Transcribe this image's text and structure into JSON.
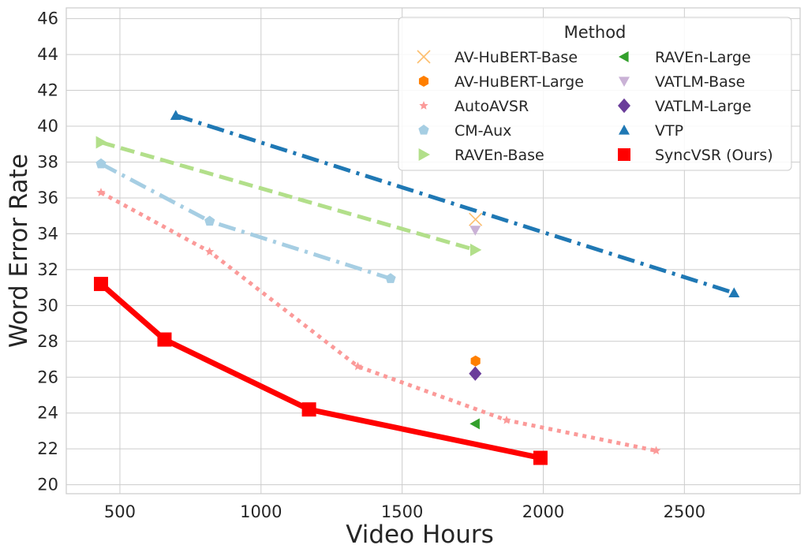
{
  "chart_data": {
    "type": "line",
    "title": "",
    "xlabel": "Video Hours",
    "ylabel": "Word Error Rate",
    "xlim": [
      310,
      2910
    ],
    "ylim": [
      19.5,
      46.6
    ],
    "xticks": [
      500,
      1000,
      1500,
      2000,
      2500
    ],
    "yticks": [
      20,
      22,
      24,
      26,
      28,
      30,
      32,
      34,
      36,
      38,
      40,
      42,
      44,
      46
    ],
    "grid": true,
    "legend": {
      "title": "Method",
      "position": "top-right",
      "columns": 2
    },
    "series": [
      {
        "name": "AV-HuBERT-Base",
        "color": "#fdbf6f",
        "marker": "x",
        "line": "none",
        "points": [
          [
            1760,
            34.8
          ]
        ]
      },
      {
        "name": "AV-HuBERT-Large",
        "color": "#ff7f00",
        "marker": "hexagon",
        "line": "none",
        "points": [
          [
            1760,
            26.9
          ]
        ]
      },
      {
        "name": "AutoAVSR",
        "color": "#fb9a99",
        "marker": "star",
        "line": "dotted",
        "points": [
          [
            433,
            36.3
          ],
          [
            818,
            33.0
          ],
          [
            1343,
            26.6
          ],
          [
            1870,
            23.6
          ],
          [
            2400,
            21.9
          ]
        ]
      },
      {
        "name": "CM-Aux",
        "color": "#a6cee3",
        "marker": "pentagon",
        "line": "dashdot",
        "points": [
          [
            433,
            37.9
          ],
          [
            818,
            34.7
          ],
          [
            1459,
            31.5
          ]
        ]
      },
      {
        "name": "RAVEn-Base",
        "color": "#b2df8a",
        "marker": "triangle-right",
        "line": "dashed",
        "points": [
          [
            433,
            39.1
          ],
          [
            1759,
            33.1
          ]
        ]
      },
      {
        "name": "RAVEn-Large",
        "color": "#33a02c",
        "marker": "triangle-left",
        "line": "none",
        "points": [
          [
            1759,
            23.4
          ]
        ]
      },
      {
        "name": "VATLM-Base",
        "color": "#cab2d6",
        "marker": "triangle-down",
        "line": "none",
        "points": [
          [
            1759,
            34.2
          ]
        ]
      },
      {
        "name": "VATLM-Large",
        "color": "#6a3d9a",
        "marker": "diamond",
        "line": "none",
        "points": [
          [
            1759,
            26.2
          ]
        ]
      },
      {
        "name": "VTP",
        "color": "#1f78b4",
        "marker": "triangle-up",
        "line": "dashdot",
        "points": [
          [
            698,
            40.6
          ],
          [
            2676,
            30.7
          ]
        ]
      },
      {
        "name": "SyncVSR (Ours)",
        "color": "#ff0000",
        "marker": "square",
        "line": "solid",
        "points": [
          [
            433,
            31.2
          ],
          [
            658,
            28.1
          ],
          [
            1170,
            24.2
          ],
          [
            1990,
            21.5
          ]
        ]
      }
    ]
  }
}
